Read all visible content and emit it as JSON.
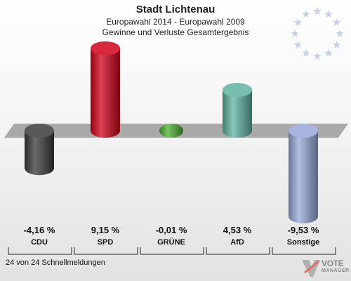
{
  "header": {
    "title": "Stadt Lichtenau",
    "subtitle": "Europawahl 2014 - Europawahl 2009",
    "subtitle2": "Gewinne und Verluste Gesamtergebnis"
  },
  "footer": {
    "text": "24 von 24 Schnellmeldungen"
  },
  "logo": {
    "text": "VOTE",
    "subtext": "MANAGER"
  },
  "chart_data": {
    "type": "bar",
    "categories": [
      "CDU",
      "SPD",
      "GRÜNE",
      "AfD",
      "Sonstige"
    ],
    "values": [
      -4.16,
      9.15,
      -0.01,
      4.53,
      -9.53
    ],
    "value_labels": [
      "-4,16 %",
      "9,15 %",
      "-0,01 %",
      "4,53 %",
      "-9,53 %"
    ],
    "colors": [
      "#3a3a3a",
      "#d0021b",
      "#4caf32",
      "#5fb3a0",
      "#97a8d8"
    ],
    "ylim": [
      -10,
      10
    ]
  }
}
